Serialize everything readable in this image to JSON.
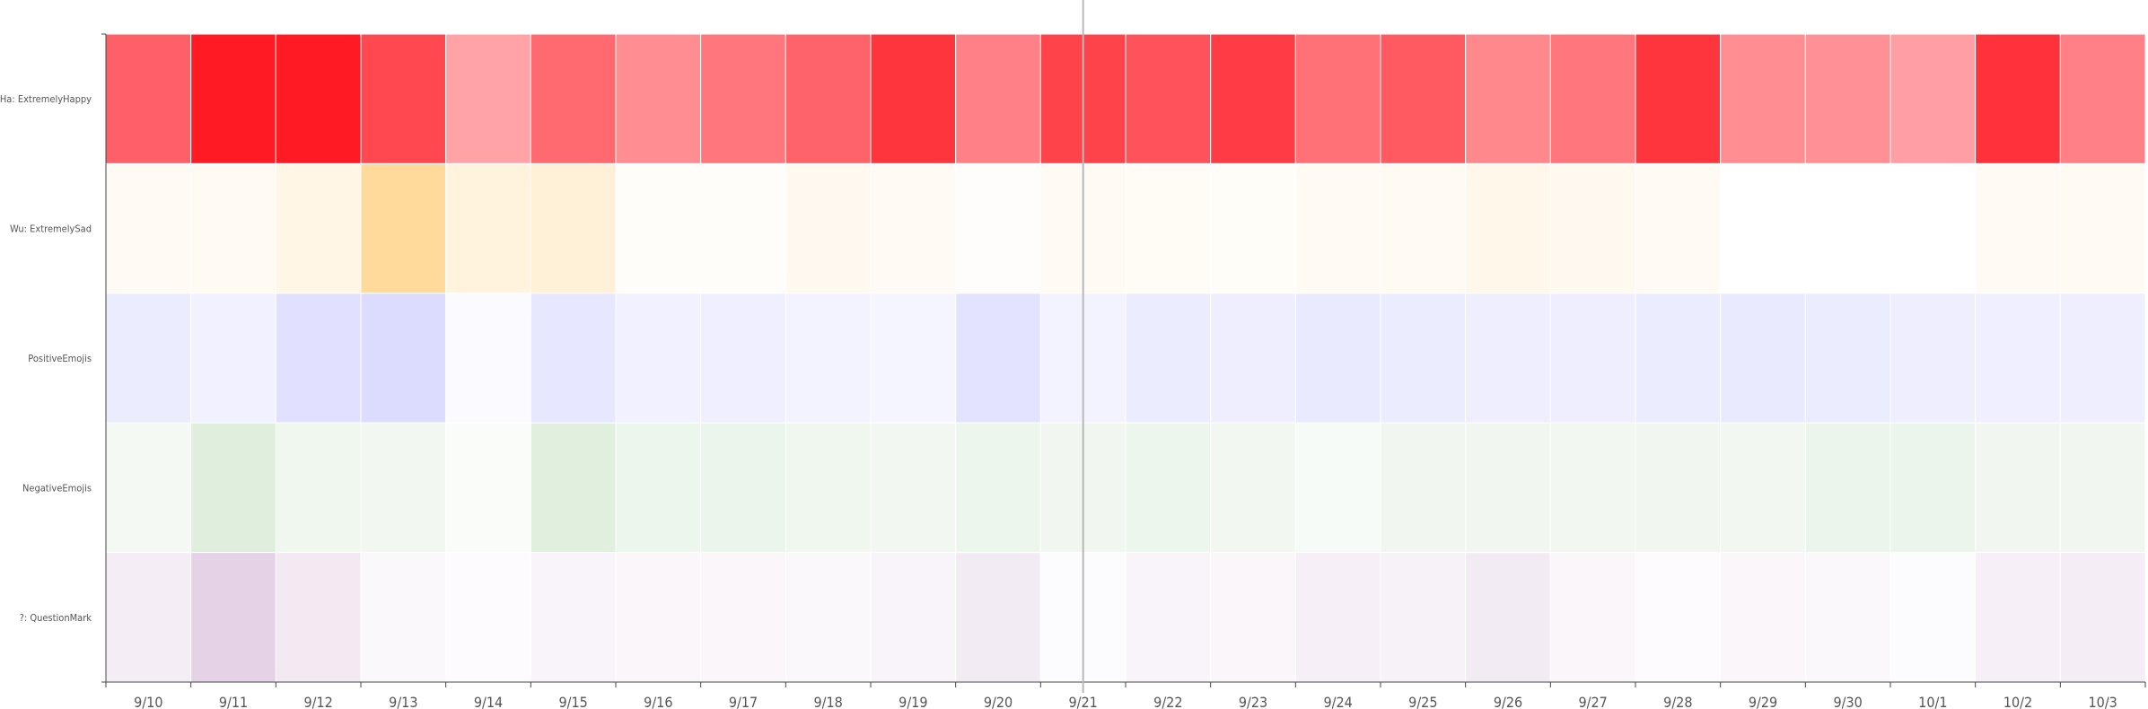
{
  "chart_data": {
    "type": "heatmap",
    "columns": [
      "9/10",
      "9/11",
      "9/12",
      "9/13",
      "9/14",
      "9/15",
      "9/16",
      "9/17",
      "9/18",
      "9/19",
      "9/20",
      "9/21",
      "9/22",
      "9/23",
      "9/24",
      "9/25",
      "9/26",
      "9/27",
      "9/28",
      "9/29",
      "9/30",
      "10/1",
      "10/2",
      "10/3"
    ],
    "rows": [
      {
        "label": "Ha: ExtremelyHappy",
        "color": "#ff1a24",
        "values": [
          0.7,
          1.0,
          1.0,
          0.8,
          0.4,
          0.65,
          0.5,
          0.6,
          0.68,
          0.88,
          0.55,
          0.82,
          0.75,
          0.85,
          0.62,
          0.72,
          0.52,
          0.6,
          0.88,
          0.5,
          0.48,
          0.42,
          0.9,
          0.55
        ]
      },
      {
        "label": "Wu: ExtremelySad",
        "color": "#ffd68f",
        "values": [
          0.1,
          0.12,
          0.22,
          0.9,
          0.3,
          0.35,
          0.05,
          0.05,
          0.14,
          0.1,
          0.04,
          0.1,
          0.08,
          0.06,
          0.1,
          0.12,
          0.2,
          0.14,
          0.1,
          0.0,
          0.0,
          0.0,
          0.1,
          0.12
        ]
      },
      {
        "label": "PositiveEmojis",
        "color": "#dcdcff",
        "values": [
          0.55,
          0.4,
          0.85,
          1.0,
          0.15,
          0.7,
          0.4,
          0.45,
          0.35,
          0.3,
          0.8,
          0.35,
          0.55,
          0.5,
          0.6,
          0.55,
          0.5,
          0.5,
          0.55,
          0.6,
          0.55,
          0.5,
          0.45,
          0.5
        ]
      },
      {
        "label": "NegativeEmojis",
        "color": "#dfeedd",
        "values": [
          0.35,
          1.0,
          0.5,
          0.4,
          0.2,
          0.95,
          0.55,
          0.6,
          0.5,
          0.4,
          0.55,
          0.45,
          0.55,
          0.4,
          0.25,
          0.45,
          0.45,
          0.4,
          0.45,
          0.4,
          0.6,
          0.6,
          0.45,
          0.45
        ]
      },
      {
        "label": "?: QuestionMark",
        "color": "#e5d2e7",
        "values": [
          0.4,
          1.0,
          0.5,
          0.15,
          0.08,
          0.25,
          0.2,
          0.2,
          0.15,
          0.25,
          0.45,
          0.1,
          0.25,
          0.2,
          0.35,
          0.3,
          0.45,
          0.2,
          0.08,
          0.2,
          0.15,
          0.1,
          0.35,
          0.4
        ]
      }
    ],
    "title": "",
    "xlabel": "",
    "ylabel": "",
    "value_range": [
      0,
      1
    ],
    "marker_column": "9/21",
    "grid": false,
    "legend": "none"
  }
}
